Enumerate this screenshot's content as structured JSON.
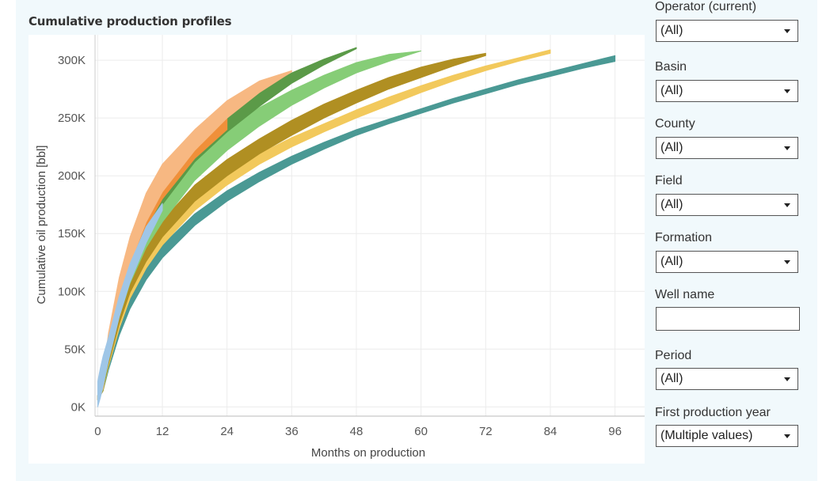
{
  "chart_data": {
    "type": "area",
    "title": "Cumulative production profiles",
    "xlabel": "Months on production",
    "ylabel": "Cumulative oil production [bbl]",
    "xticks": [
      "0",
      "12",
      "24",
      "36",
      "48",
      "60",
      "72",
      "84",
      "96"
    ],
    "yticks": [
      "0K",
      "50K",
      "100K",
      "150K",
      "200K",
      "250K",
      "300K"
    ],
    "xlim": [
      -0.5,
      101.5
    ],
    "ylim": [
      -8000,
      322000
    ],
    "grid": true,
    "series": [
      {
        "color": "#4a9994",
        "x": [
          0,
          1,
          2,
          4,
          6,
          9,
          12,
          18,
          24,
          30,
          36,
          42,
          48,
          54,
          60,
          66,
          72,
          78,
          84,
          90,
          96
        ],
        "low": [
          6000,
          14000,
          32000,
          62000,
          85000,
          110000,
          129000,
          157000,
          178000,
          195000,
          210000,
          223000,
          235000,
          245000,
          254000,
          263000,
          271000,
          279000,
          286000,
          293000,
          299000
        ],
        "high": [
          10000,
          20000,
          42000,
          72000,
          96000,
          121000,
          140000,
          167000,
          187000,
          203000,
          217000,
          229000,
          240000,
          249000,
          258000,
          267000,
          275000,
          283000,
          290000,
          297000,
          304000
        ]
      },
      {
        "color": "#f2c95c",
        "x": [
          0,
          1,
          2,
          4,
          6,
          9,
          12,
          18,
          24,
          30,
          36,
          42,
          48,
          54,
          60,
          66,
          72,
          78,
          84
        ],
        "low": [
          6000,
          14000,
          35000,
          68000,
          94000,
          120000,
          140000,
          170000,
          192000,
          210000,
          225000,
          238000,
          250000,
          261000,
          272000,
          282000,
          291000,
          299000,
          306000
        ],
        "high": [
          10000,
          22000,
          46000,
          80000,
          105000,
          133000,
          153000,
          182000,
          202000,
          219000,
          233000,
          245000,
          257000,
          268000,
          278000,
          287000,
          295000,
          302000,
          309000
        ]
      },
      {
        "color": "#b08f22",
        "x": [
          0,
          1,
          2,
          4,
          6,
          9,
          12,
          18,
          24,
          30,
          36,
          42,
          48,
          54,
          60,
          66,
          72
        ],
        "low": [
          6000,
          14000,
          37000,
          72000,
          99000,
          126000,
          147000,
          178000,
          200000,
          219000,
          235000,
          250000,
          263000,
          275000,
          285000,
          295000,
          304000
        ],
        "high": [
          10000,
          22000,
          48000,
          84000,
          112000,
          140000,
          161000,
          192000,
          214000,
          232000,
          248000,
          262000,
          274000,
          285000,
          294000,
          301000,
          306000
        ]
      },
      {
        "color": "#86cd77",
        "x": [
          0,
          1,
          2,
          4,
          6,
          9,
          12,
          18,
          24,
          30,
          36,
          42,
          48,
          54,
          60
        ],
        "low": [
          6000,
          15000,
          40000,
          78000,
          107000,
          138000,
          160000,
          196000,
          222000,
          243000,
          261000,
          276000,
          289000,
          299000,
          308000
        ],
        "high": [
          10000,
          24000,
          52000,
          92000,
          123000,
          156000,
          180000,
          215000,
          240000,
          259000,
          274000,
          287000,
          298000,
          305000,
          308000
        ]
      },
      {
        "color": "#5b9a48",
        "x": [
          0,
          1,
          2,
          4,
          6,
          9,
          12,
          18,
          24,
          30,
          36,
          42,
          48
        ],
        "low": [
          6000,
          16000,
          42000,
          84000,
          116000,
          150000,
          175000,
          212000,
          238000,
          260000,
          280000,
          296000,
          310000
        ],
        "high": [
          10000,
          26000,
          56000,
          100000,
          134000,
          170000,
          195000,
          230000,
          254000,
          273000,
          289000,
          301000,
          311000
        ]
      },
      {
        "color": "#f0903a",
        "x": [
          0,
          1,
          2,
          4,
          6,
          9,
          12,
          18,
          24
        ],
        "low": [
          6000,
          16000,
          44000,
          88000,
          120000,
          155000,
          180000,
          215000,
          240000
        ],
        "high": [
          10000,
          28000,
          60000,
          108000,
          142000,
          178000,
          202000,
          232000,
          255000
        ]
      },
      {
        "color": "#f7b882",
        "x": [
          0,
          1,
          2,
          4,
          6,
          9,
          12,
          18,
          24,
          30,
          36
        ],
        "low": [
          6000,
          16000,
          46000,
          92000,
          124000,
          160000,
          186000,
          222000,
          250000,
          272000,
          290000
        ],
        "high": [
          10000,
          28000,
          64000,
          112000,
          147000,
          185000,
          210000,
          240000,
          265000,
          282000,
          291000
        ]
      },
      {
        "color": "#9fc6e7",
        "x": [
          0,
          0.5,
          1,
          2,
          4,
          6,
          9,
          12
        ],
        "low": [
          0,
          8000,
          18000,
          40000,
          78000,
          108000,
          142000,
          170000
        ],
        "high": [
          22000,
          34000,
          44000,
          60000,
          96000,
          124000,
          156000,
          176000
        ]
      }
    ]
  },
  "filters": [
    {
      "label": "Operator (current)",
      "value": "(All)",
      "type": "select"
    },
    {
      "label": "Basin",
      "value": "(All)",
      "type": "select"
    },
    {
      "label": "County",
      "value": "(All)",
      "type": "select"
    },
    {
      "label": "Field",
      "value": "(All)",
      "type": "select"
    },
    {
      "label": "Formation",
      "value": "(All)",
      "type": "select"
    },
    {
      "label": "Well name",
      "value": "",
      "type": "input"
    },
    {
      "label": "Period",
      "value": "(All)",
      "type": "select"
    },
    {
      "label": "First production year",
      "value": "(Multiple values)",
      "type": "select"
    }
  ],
  "colors": {
    "panel_bg": "#f1f9fc",
    "grid": "#ececec"
  }
}
